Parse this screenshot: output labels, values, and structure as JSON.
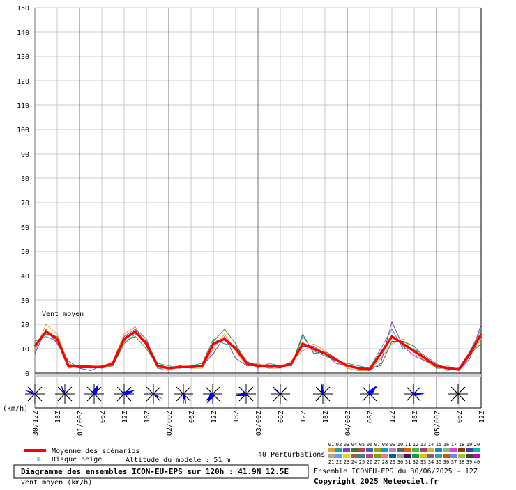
{
  "chart_data": {
    "type": "line",
    "annotation": "Vent moyen",
    "y_unit_label": "(km/h)",
    "categories": [
      "30/12Z",
      null,
      "18Z",
      null,
      "01/00Z",
      null,
      "06Z",
      null,
      "12Z",
      null,
      "18Z",
      null,
      "02/00Z",
      null,
      "06Z",
      null,
      "12Z",
      null,
      "18Z",
      null,
      "03/00Z",
      null,
      "06Z",
      null,
      "12Z",
      null,
      "18Z",
      null,
      "04/00Z",
      null,
      "06Z",
      null,
      "12Z",
      null,
      "18Z",
      null,
      "05/00Z",
      null,
      "06Z",
      null,
      "12Z"
    ],
    "ylim": [
      0,
      150
    ],
    "yticks": [
      0,
      10,
      20,
      30,
      40,
      50,
      60,
      70,
      80,
      90,
      100,
      110,
      120,
      130,
      140,
      150
    ],
    "grid": true,
    "series": [
      {
        "name": "Moyenne des scénarios",
        "color": "#ff0000",
        "values": [
          11,
          17,
          14,
          3,
          2.5,
          2.5,
          2.5,
          4,
          14,
          17,
          12,
          3,
          2,
          2.5,
          2.5,
          3,
          12,
          14,
          10,
          4,
          3,
          3,
          2.5,
          4,
          12,
          10,
          8,
          5.5,
          3,
          2,
          1.5,
          8,
          15,
          12,
          9,
          6,
          3,
          2,
          1.5,
          8,
          16
        ]
      },
      {
        "name": "01",
        "color": "#e0a030",
        "values": [
          9,
          20,
          16,
          4,
          2,
          3,
          2,
          5,
          16,
          19,
          11,
          2,
          1,
          3,
          2,
          2,
          10,
          16,
          9,
          3,
          4,
          2,
          2,
          5,
          9,
          12,
          9,
          6,
          2,
          1,
          1,
          6,
          12,
          14,
          8,
          5,
          2,
          3,
          1,
          7,
          14
        ]
      },
      {
        "name": "02",
        "color": "#20a0a0",
        "values": [
          13,
          15,
          13,
          2,
          3,
          2,
          3,
          3,
          12,
          16,
          13,
          4,
          3,
          2,
          3,
          4,
          14,
          12,
          11,
          5,
          2,
          4,
          3,
          3,
          15,
          9,
          7,
          5,
          4,
          3,
          2,
          10,
          18,
          10,
          10,
          7,
          4,
          1,
          2,
          9,
          18
        ]
      },
      {
        "name": "03",
        "color": "#8040c0",
        "values": [
          8,
          18,
          12,
          5,
          2,
          1,
          3,
          4,
          15,
          18,
          14,
          2,
          2,
          3,
          2,
          3,
          8,
          15,
          6,
          3,
          3,
          3,
          2,
          4,
          11,
          11,
          8,
          4,
          3,
          2,
          1,
          4,
          21,
          11,
          7,
          5,
          3,
          2,
          1,
          6,
          20
        ]
      },
      {
        "name": "04",
        "color": "#308030",
        "values": [
          12,
          16,
          15,
          3,
          3,
          3,
          2,
          3,
          13,
          15,
          10,
          3,
          2,
          2,
          3,
          3,
          13,
          18,
          12,
          4,
          3,
          2,
          3,
          3,
          16,
          8,
          9,
          6,
          3,
          2,
          2,
          3,
          13,
          13,
          11,
          6,
          2,
          2,
          2,
          8,
          12
        ]
      }
    ],
    "snow_label": "Risque neige",
    "altitude": "Altitude du modele : 51 m",
    "perturbations_title": "40 Perturbations",
    "perturbation_labels": [
      "01",
      "02",
      "03",
      "04",
      "05",
      "06",
      "07",
      "08",
      "09",
      "10",
      "11",
      "12",
      "13",
      "14",
      "15",
      "16",
      "17",
      "18",
      "19",
      "20",
      "21",
      "22",
      "23",
      "24",
      "25",
      "26",
      "27",
      "28",
      "29",
      "30",
      "31",
      "32",
      "33",
      "34",
      "35",
      "36",
      "37",
      "38",
      "39",
      "40"
    ],
    "perturbation_colors": [
      "#e0a030",
      "#20a0a0",
      "#8040c0",
      "#308030",
      "#c04040",
      "#4060c0",
      "#a0a000",
      "#00a0e0",
      "#c080c0",
      "#606060",
      "#e06000",
      "#40c040",
      "#a04080",
      "#c0c040",
      "#2080c0",
      "#80c080",
      "#e040e0",
      "#804000",
      "#4040a0",
      "#00c0a0",
      "#c0a080",
      "#60a0e0",
      "#e0e000",
      "#a06040",
      "#408080",
      "#c04080",
      "#80a000",
      "#e08080",
      "#0060a0",
      "#a0a0a0",
      "#600060",
      "#00a040",
      "#e0c000",
      "#806080",
      "#40a0a0",
      "#c06000",
      "#8080e0",
      "#a0c040",
      "#404040",
      "#c000c0"
    ],
    "footer_title": "Diagramme des ensembles ICON-EU-EPS sur 120h : 41.9N 12.5E",
    "footer_subtitle": "Vent moyen (km/h)",
    "run_info": "Ensemble ICONEU-EPS du 30/06/2025 - 12Z",
    "copyright": "Copyright 2025 Meteociel.fr"
  }
}
